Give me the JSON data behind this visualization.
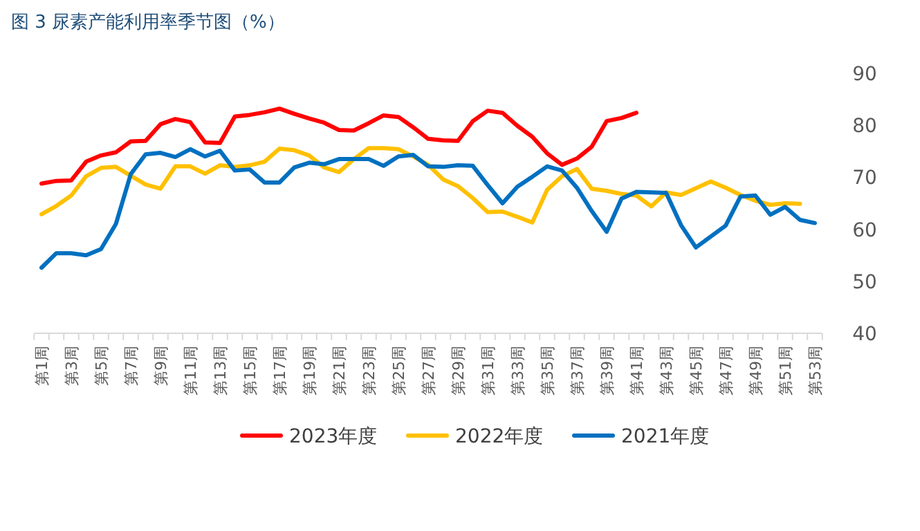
{
  "chart_data": {
    "type": "line",
    "title": "图 3  尿素产能利用率季节图（%）",
    "categories": [
      "第1周",
      null,
      "第3周",
      null,
      "第5周",
      null,
      "第7周",
      null,
      "第9周",
      null,
      "第11周",
      null,
      "第13周",
      null,
      "第15周",
      null,
      "第17周",
      null,
      "第19周",
      null,
      "第21周",
      null,
      "第23周",
      null,
      "第25周",
      null,
      "第27周",
      null,
      "第29周",
      null,
      "第31周",
      null,
      "第33周",
      null,
      "第35周",
      null,
      "第37周",
      null,
      "第39周",
      null,
      "第41周",
      null,
      "第43周",
      null,
      "第45周",
      null,
      "第47周",
      null,
      "第49周",
      null,
      "第51周",
      null,
      "第53周"
    ],
    "series": [
      {
        "name": "2023年度",
        "color": "#ff0000",
        "values": [
          68.8,
          69.3,
          69.4,
          73,
          74.2,
          74.8,
          76.9,
          77,
          80.2,
          81.2,
          80.6,
          76.7,
          76.6,
          81.7,
          82,
          82.5,
          83.2,
          82.2,
          81.3,
          80.5,
          79.1,
          79,
          80.4,
          81.9,
          81.6,
          79.6,
          77.4,
          77.1,
          77,
          80.8,
          82.8,
          82.4,
          79.9,
          77.8,
          74.6,
          72.4,
          73.6,
          75.9,
          80.8,
          81.4,
          82.4,
          null,
          null,
          null,
          null,
          null,
          null,
          null,
          null,
          null,
          null,
          null,
          null
        ]
      },
      {
        "name": "2022年度",
        "color": "#ffc000",
        "values": [
          62.9,
          64.5,
          66.5,
          70.2,
          71.8,
          72,
          70.3,
          68.6,
          67.8,
          72.1,
          72.1,
          70.7,
          72.3,
          72,
          72.3,
          73,
          75.5,
          75.2,
          74.2,
          71.9,
          71,
          73.5,
          75.6,
          75.6,
          75.4,
          74,
          72.4,
          69.6,
          68.3,
          66,
          63.3,
          63.4,
          62.4,
          61.3,
          67.6,
          70.2,
          71.6,
          67.8,
          67.4,
          66.8,
          66.5,
          64.4,
          67.1,
          66.6,
          67.9,
          69.2,
          68,
          66.6,
          65.5,
          64.7,
          65,
          64.9,
          null
        ]
      },
      {
        "name": "2021年度",
        "color": "#0070c0",
        "values": [
          52.6,
          55.4,
          55.4,
          55,
          56.2,
          61,
          70.6,
          74.4,
          74.7,
          73.9,
          75.4,
          74,
          75.1,
          71.3,
          71.5,
          69,
          69,
          71.9,
          72.8,
          72.5,
          73.5,
          73.5,
          73.5,
          72.2,
          74,
          74.3,
          72.1,
          72,
          72.3,
          72.2,
          68.5,
          65,
          68.2,
          70.1,
          72.1,
          71.3,
          68,
          63.5,
          59.5,
          65.9,
          67.2,
          67.1,
          67,
          60.8,
          56.5,
          58.6,
          60.7,
          66.3,
          66.5,
          62.8,
          64.3,
          61.8,
          61.2
        ]
      }
    ],
    "ylim": [
      40,
      90
    ],
    "yticks": [
      40,
      50,
      60,
      70,
      80,
      90
    ],
    "grid": false,
    "legend": "bottom",
    "marker": "none",
    "line_style": "solid"
  }
}
